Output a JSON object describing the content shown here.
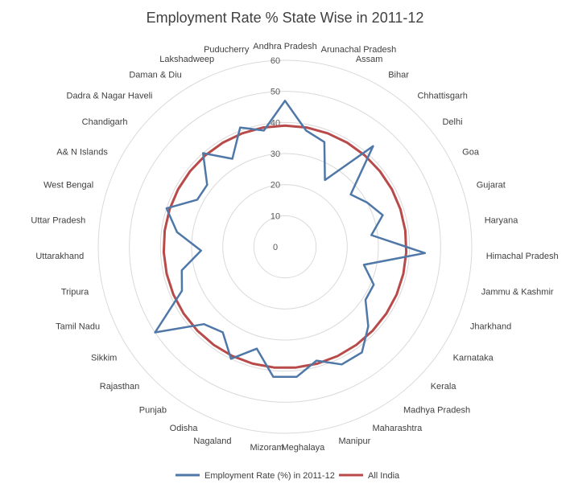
{
  "chart_data": {
    "type": "radar",
    "title": "Employment Rate % State Wise in 2011-12",
    "rmax": 60,
    "rticks": [
      "0",
      "10",
      "20",
      "30",
      "40",
      "50",
      "60"
    ],
    "categories": [
      "Andhra Pradesh",
      "Arunachal Pradesh",
      "Assam",
      "Bihar",
      "Chhattisgarh",
      "Delhi",
      "Goa",
      "Gujarat",
      "Haryana",
      "Himachal Pradesh",
      "Jammu & Kashmir",
      "Jharkhand",
      "Karnataka",
      "Kerala",
      "Madhya Pradesh",
      "Maharashtra",
      "Manipur",
      "Meghalaya",
      "Mizoram",
      "Nagaland",
      "Odisha",
      "Punjab",
      "Rajasthan",
      "Sikkim",
      "Tamil Nadu",
      "Tripura",
      "Uttarakhand",
      "Uttar Pradesh",
      "West Bengal",
      "A& N Islands",
      "Chandigarh",
      "Dadra & Nagar Haveli",
      "Daman & Diu",
      "Lakshadweep",
      "Puducherry"
    ],
    "series": [
      {
        "name": "Employment Rate (%) in 2011-12",
        "color": "#4f78a8",
        "values": [
          47,
          38,
          36,
          25,
          43,
          27,
          30,
          33,
          28,
          45,
          26,
          31,
          31,
          37,
          42,
          42,
          38,
          42,
          42,
          34,
          40,
          34,
          36,
          50,
          36,
          34,
          27,
          35,
          40,
          32,
          32,
          40,
          33,
          41,
          38
        ]
      },
      {
        "name": "All India",
        "color": "#b84a4a",
        "values": [
          39,
          39,
          39,
          39,
          39,
          39,
          39,
          39,
          39,
          39,
          39,
          39,
          39,
          39,
          39,
          39,
          39,
          39,
          39,
          39,
          39,
          39,
          39,
          39,
          39,
          39,
          39,
          39,
          39,
          39,
          39,
          39,
          39,
          39,
          39
        ]
      }
    ],
    "legend_position": "bottom",
    "grid": true
  }
}
